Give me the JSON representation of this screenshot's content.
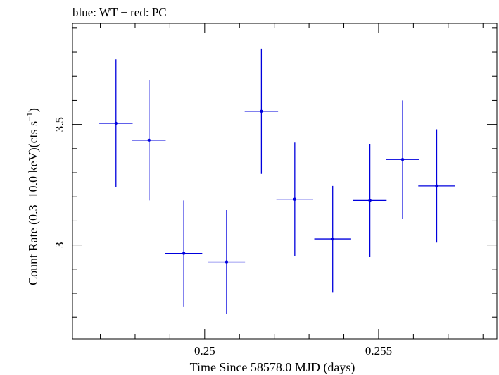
{
  "chart_data": {
    "type": "scatter",
    "title": "blue: WT − red: PC",
    "xlabel": "Time Since 58578.0 MJD (days)",
    "ylabel_main": "Count Rate (0.3–10.0 keV)(cts s",
    "ylabel_sup": "−1",
    "ylabel_close": ")",
    "xlim": [
      0.2462,
      0.2584
    ],
    "ylim": [
      2.61,
      3.92
    ],
    "xticks": [
      0.25,
      0.255
    ],
    "xtick_labels": [
      "0.25",
      "0.255"
    ],
    "yticks": [
      3,
      3.5
    ],
    "ytick_labels": [
      "3",
      "3.5"
    ],
    "series": [
      {
        "color": "#0000dd",
        "points": [
          {
            "x": 0.24745,
            "xerr": 0.00048,
            "y": 3.505,
            "yerr": 0.265
          },
          {
            "x": 0.2484,
            "xerr": 0.00048,
            "y": 3.435,
            "yerr": 0.25
          },
          {
            "x": 0.2494,
            "xerr": 0.00053,
            "y": 2.965,
            "yerr": 0.22
          },
          {
            "x": 0.25063,
            "xerr": 0.00053,
            "y": 2.93,
            "yerr": 0.215
          },
          {
            "x": 0.25163,
            "xerr": 0.00048,
            "y": 3.555,
            "yerr": 0.26
          },
          {
            "x": 0.25259,
            "xerr": 0.00053,
            "y": 3.19,
            "yerr": 0.235
          },
          {
            "x": 0.25368,
            "xerr": 0.00053,
            "y": 3.025,
            "yerr": 0.22
          },
          {
            "x": 0.25475,
            "xerr": 0.00048,
            "y": 3.185,
            "yerr": 0.235
          },
          {
            "x": 0.25569,
            "xerr": 0.00048,
            "y": 3.355,
            "yerr": 0.245
          },
          {
            "x": 0.25667,
            "xerr": 0.00053,
            "y": 3.245,
            "yerr": 0.235
          }
        ]
      }
    ]
  }
}
